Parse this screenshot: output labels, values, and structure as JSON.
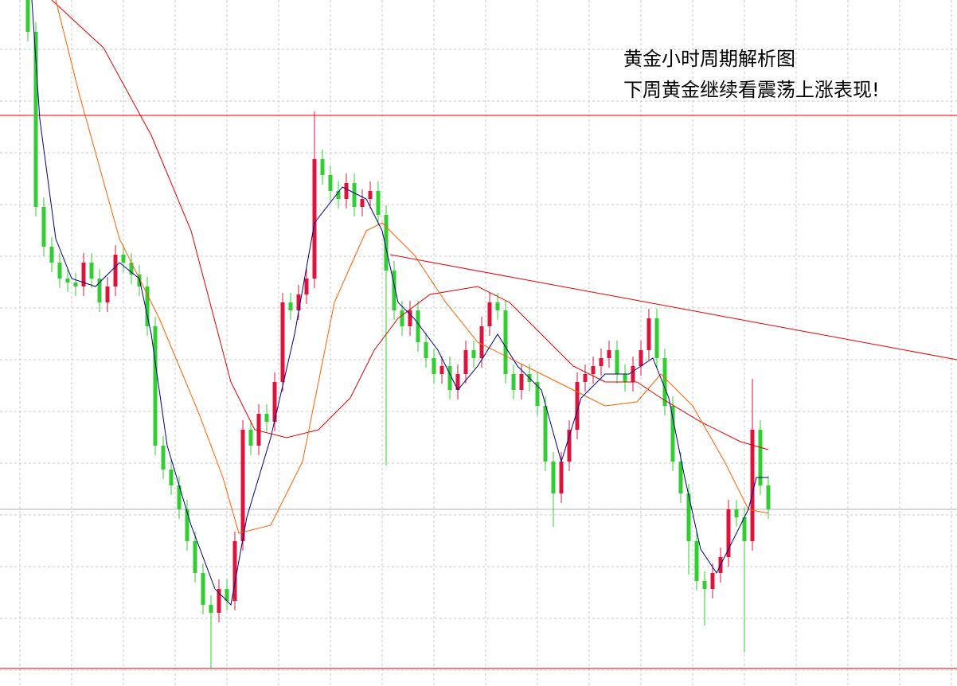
{
  "chart_data": {
    "type": "candlestick",
    "annotations": [
      "黄金小时周期解析图",
      "下周黄金继续看震荡上涨表现!"
    ],
    "x": [
      0,
      1,
      2,
      3,
      4,
      5,
      6,
      7,
      8,
      9,
      10,
      11,
      12,
      13,
      14,
      15,
      16,
      17,
      18,
      19,
      20,
      21,
      22,
      23,
      24,
      25,
      26,
      27,
      28,
      29,
      30,
      31,
      32,
      33,
      34,
      35,
      36,
      37,
      38,
      39,
      40,
      41,
      42,
      43,
      44,
      45,
      46,
      47,
      48,
      49,
      50,
      51,
      52,
      53,
      54,
      55,
      56,
      57,
      58,
      59,
      60,
      61,
      62,
      63,
      64,
      65,
      66,
      67,
      68,
      69,
      70,
      71,
      72,
      73,
      74,
      75,
      76,
      77,
      78,
      79,
      80,
      81,
      82,
      83,
      84,
      85,
      86,
      87,
      88,
      89,
      90,
      91,
      92,
      93
    ],
    "open": [
      862,
      822,
      602,
      552,
      532,
      512,
      507,
      502,
      532,
      512,
      482,
      502,
      542,
      532,
      517,
      502,
      452,
      302,
      272,
      252,
      222,
      182,
      142,
      102,
      92,
      122,
      107,
      182,
      322,
      302,
      342,
      332,
      382,
      482,
      472,
      492,
      512,
      662,
      642,
      622,
      612,
      632,
      602,
      612,
      622,
      592,
      522,
      472,
      452,
      472,
      432,
      412,
      392,
      402,
      372,
      392,
      422,
      412,
      452,
      482,
      472,
      392,
      372,
      392,
      382,
      352,
      282,
      242,
      282,
      322,
      382,
      392,
      402,
      412,
      422,
      392,
      382,
      402,
      422,
      462,
      412,
      352,
      282,
      242,
      182,
      132,
      122,
      142,
      162,
      222,
      212,
      182,
      322,
      252
    ],
    "high": [
      862,
      834,
      614,
      564,
      544,
      524,
      519,
      544,
      544,
      524,
      514,
      554,
      554,
      544,
      529,
      514,
      464,
      314,
      284,
      264,
      234,
      194,
      154,
      114,
      134,
      134,
      194,
      334,
      334,
      354,
      354,
      394,
      494,
      494,
      504,
      524,
      722,
      674,
      654,
      634,
      644,
      644,
      624,
      634,
      634,
      604,
      534,
      484,
      484,
      484,
      444,
      424,
      414,
      414,
      404,
      434,
      434,
      464,
      494,
      494,
      484,
      404,
      404,
      404,
      394,
      364,
      294,
      294,
      334,
      394,
      404,
      414,
      424,
      434,
      434,
      404,
      414,
      434,
      474,
      474,
      424,
      364,
      294,
      254,
      194,
      144,
      154,
      174,
      234,
      234,
      224,
      386,
      334,
      264
    ],
    "low": [
      810,
      590,
      540,
      520,
      500,
      495,
      490,
      490,
      500,
      470,
      470,
      490,
      520,
      505,
      490,
      440,
      290,
      260,
      240,
      210,
      170,
      130,
      90,
      22,
      80,
      95,
      95,
      170,
      290,
      290,
      320,
      320,
      370,
      460,
      460,
      480,
      500,
      630,
      610,
      600,
      600,
      590,
      590,
      600,
      580,
      277,
      460,
      440,
      440,
      420,
      400,
      380,
      380,
      360,
      360,
      380,
      400,
      400,
      440,
      460,
      380,
      360,
      360,
      370,
      340,
      270,
      200,
      230,
      270,
      310,
      370,
      380,
      390,
      400,
      380,
      370,
      370,
      390,
      410,
      400,
      340,
      270,
      230,
      140,
      120,
      76,
      110,
      130,
      150,
      200,
      42,
      170,
      240,
      210
    ],
    "close": [
      822,
      602,
      552,
      532,
      512,
      507,
      502,
      532,
      512,
      482,
      502,
      542,
      532,
      517,
      502,
      452,
      302,
      272,
      252,
      222,
      182,
      142,
      102,
      92,
      122,
      107,
      182,
      322,
      302,
      342,
      332,
      382,
      482,
      472,
      492,
      512,
      662,
      642,
      622,
      612,
      632,
      602,
      612,
      622,
      592,
      522,
      472,
      452,
      472,
      432,
      412,
      392,
      402,
      372,
      392,
      422,
      412,
      452,
      482,
      472,
      392,
      372,
      392,
      382,
      352,
      282,
      242,
      282,
      322,
      382,
      392,
      402,
      412,
      422,
      392,
      382,
      402,
      422,
      462,
      412,
      352,
      282,
      242,
      182,
      132,
      122,
      142,
      162,
      222,
      212,
      182,
      322,
      252,
      222
    ],
    "up_color": "#dc143c",
    "down_color": "#32cd32",
    "lines": [
      {
        "color": "#e00000",
        "x": [
          3,
          9.5,
          15.5,
          20.5,
          25.5,
          28.5,
          32.5,
          36.5,
          40.5,
          43.5,
          46.5,
          50.5,
          56.5,
          60.5,
          64.5,
          68.5,
          72.5,
          76.5,
          79.5,
          84.5,
          89.5,
          93
        ],
        "y": [
          862,
          802,
          692,
          572,
          382,
          322,
          312,
          322,
          362,
          422,
          462,
          492,
          502,
          482,
          442,
          402,
          382,
          382,
          362,
          332,
          307,
          297
        ]
      },
      {
        "color": "#ff6000",
        "x": [
          3.5,
          6.5,
          11.5,
          16.5,
          21.5,
          24.5,
          26.5,
          30.5,
          34.5,
          38.5,
          42.5,
          44.5,
          48.5,
          52.5,
          56.5,
          62.5,
          68.5,
          72.5,
          76.5,
          79.5,
          83.5,
          87.5,
          90.5,
          93
        ],
        "y": [
          862,
          742,
          562,
          462,
          342,
          262,
          192,
          202,
          282,
          482,
          572,
          582,
          542,
          482,
          432,
          402,
          372,
          352,
          357,
          392,
          352,
          282,
          222,
          217
        ]
      },
      {
        "color": "#000080",
        "x": [
          0.5,
          1.5,
          3.5,
          5.5,
          8.5,
          11.5,
          14,
          15.5,
          17.5,
          20.5,
          23.5,
          25.5,
          27.5,
          30.5,
          33.5,
          36,
          39.5,
          42.5,
          44.5,
          46.5,
          48.5,
          51.5,
          54,
          56.5,
          59,
          61.5,
          64.5,
          67,
          69.5,
          72.5,
          75.5,
          78.5,
          80.5,
          82.5,
          84.5,
          86.5,
          88.5,
          90.5,
          91.5,
          93
        ],
        "y": [
          862,
          712,
          562,
          512,
          502,
          532,
          512,
          442,
          302,
          202,
          122,
          102,
          212,
          312,
          442,
          582,
          627,
          612,
          572,
          482,
          462,
          422,
          372,
          402,
          442,
          402,
          372,
          282,
          362,
          392,
          392,
          412,
          362,
          262,
          172,
          142,
          182,
          222,
          262,
          262
        ]
      }
    ],
    "hlines": [
      {
        "value": 717,
        "color": "#e00000"
      },
      {
        "value": 22,
        "color": "#e00000"
      },
      {
        "value": 222,
        "color": "#b0b0b0"
      }
    ],
    "trendline": {
      "x": [
        45.5,
        116.7
      ],
      "y": [
        542,
        410
      ],
      "color": "#e00000"
    },
    "xlim": [
      -3.5,
      116.7
    ],
    "ylim": [
      0,
      862
    ]
  }
}
